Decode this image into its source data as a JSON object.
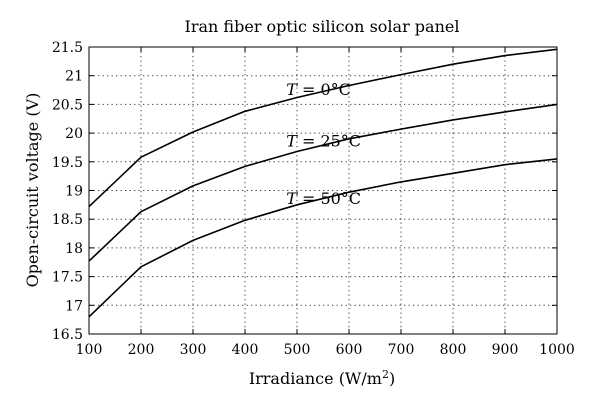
{
  "chart_data": {
    "type": "line",
    "title": "Iran fiber optic silicon solar panel",
    "xlabel": "Irradiance (W/m²)",
    "ylabel": "Open-circuit voltage (V)",
    "xlim": [
      100,
      1000
    ],
    "ylim": [
      16.5,
      21.5
    ],
    "x_ticks": [
      100,
      200,
      300,
      400,
      500,
      600,
      700,
      800,
      900,
      1000
    ],
    "y_ticks": [
      16.5,
      17,
      17.5,
      18,
      18.5,
      19,
      19.5,
      20,
      20.5,
      21,
      21.5
    ],
    "grid": true,
    "x": [
      100,
      200,
      300,
      400,
      500,
      600,
      700,
      800,
      900,
      1000
    ],
    "series": [
      {
        "values": [
          18.72,
          19.58,
          20.02,
          20.38,
          20.62,
          20.83,
          21.02,
          21.2,
          21.35,
          21.46
        ]
      },
      {
        "values": [
          17.77,
          18.63,
          19.08,
          19.42,
          19.68,
          19.9,
          20.07,
          20.23,
          20.37,
          20.5
        ]
      },
      {
        "values": [
          16.8,
          17.67,
          18.13,
          18.48,
          18.75,
          18.97,
          19.15,
          19.3,
          19.45,
          19.55
        ]
      }
    ],
    "annotations": [
      {
        "text": "T = 0°C",
        "x": 560,
        "y": 20.75
      },
      {
        "text": "T = 25°C",
        "x": 560,
        "y": 19.85
      },
      {
        "text": "T = 50°C",
        "x": 560,
        "y": 18.85
      }
    ]
  }
}
